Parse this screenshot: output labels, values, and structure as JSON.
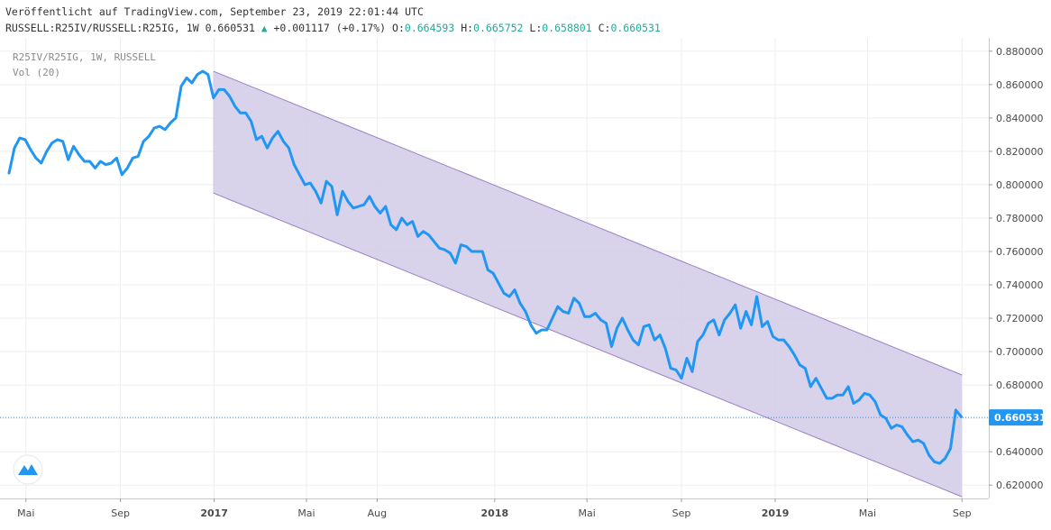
{
  "header": {
    "published": "Veröffentlicht auf TradingView.com, September 23, 2019 22:01:44 UTC",
    "symbol_info": "RUSSELL:R25IV/RUSSELL:R25IG, 1W",
    "last": "0.660531",
    "change": "+0.001117 (+0.17%)",
    "o_label": "O:",
    "o_value": "0.664593",
    "h_label": "H:",
    "h_value": "0.665752",
    "l_label": "L:",
    "l_value": "0.658801",
    "c_label": "C:",
    "c_value": "0.660531"
  },
  "legend": {
    "series": "R25IV/R25IG, 1W, RUSSELL",
    "volume": "Vol (20)"
  },
  "colors": {
    "line": "#2196f3",
    "channel_fill": "#d1cbe6",
    "channel_border": "#9c7fc4",
    "grid": "#eeeeee",
    "price_tag": "#2196f3"
  },
  "icons": {
    "logo": "tradingview-logo-icon"
  },
  "chart_data": {
    "type": "line",
    "timeframe": "1W",
    "x_ticks": [
      "Mai",
      "Sep",
      "2017",
      "Mai",
      "Aug",
      "2018",
      "Mai",
      "Sep",
      "2019",
      "Mai",
      "Sep"
    ],
    "y_ticks": [
      "0.620000",
      "0.640000",
      "0.660000",
      "0.680000",
      "0.700000",
      "0.720000",
      "0.740000",
      "0.760000",
      "0.780000",
      "0.800000",
      "0.820000",
      "0.840000",
      "0.860000",
      "0.880000"
    ],
    "ylim": [
      0.612,
      0.888
    ],
    "last_value": 0.660531,
    "last_value_label": "0.660531",
    "x_start": "2016-04-09",
    "x_end": "2019-09-23",
    "series": [
      {
        "points": [
          [
            "2016-04-09",
            0.807
          ],
          [
            "2016-04-16",
            0.822
          ],
          [
            "2016-04-23",
            0.828
          ],
          [
            "2016-04-30",
            0.827
          ],
          [
            "2016-05-07",
            0.821
          ],
          [
            "2016-05-14",
            0.816
          ],
          [
            "2016-05-21",
            0.813
          ],
          [
            "2016-05-28",
            0.82
          ],
          [
            "2016-06-04",
            0.825
          ],
          [
            "2016-06-11",
            0.827
          ],
          [
            "2016-06-18",
            0.826
          ],
          [
            "2016-06-25",
            0.815
          ],
          [
            "2016-07-02",
            0.823
          ],
          [
            "2016-07-09",
            0.818
          ],
          [
            "2016-07-16",
            0.814
          ],
          [
            "2016-07-23",
            0.814
          ],
          [
            "2016-07-30",
            0.81
          ],
          [
            "2016-08-06",
            0.814
          ],
          [
            "2016-08-13",
            0.812
          ],
          [
            "2016-08-20",
            0.813
          ],
          [
            "2016-08-27",
            0.816
          ],
          [
            "2016-09-03",
            0.806
          ],
          [
            "2016-09-10",
            0.81
          ],
          [
            "2016-09-17",
            0.816
          ],
          [
            "2016-09-24",
            0.817
          ],
          [
            "2016-10-01",
            0.826
          ],
          [
            "2016-10-08",
            0.829
          ],
          [
            "2016-10-15",
            0.834
          ],
          [
            "2016-10-22",
            0.835
          ],
          [
            "2016-10-29",
            0.833
          ],
          [
            "2016-11-05",
            0.837
          ],
          [
            "2016-11-12",
            0.84
          ],
          [
            "2016-11-19",
            0.859
          ],
          [
            "2016-11-26",
            0.864
          ],
          [
            "2016-12-03",
            0.861
          ],
          [
            "2016-12-10",
            0.866
          ],
          [
            "2016-12-17",
            0.868
          ],
          [
            "2016-12-24",
            0.866
          ],
          [
            "2016-12-31",
            0.852
          ],
          [
            "2017-01-07",
            0.857
          ],
          [
            "2017-01-14",
            0.857
          ],
          [
            "2017-01-21",
            0.853
          ],
          [
            "2017-01-28",
            0.847
          ],
          [
            "2017-02-04",
            0.843
          ],
          [
            "2017-02-11",
            0.843
          ],
          [
            "2017-02-18",
            0.838
          ],
          [
            "2017-02-25",
            0.827
          ],
          [
            "2017-03-04",
            0.829
          ],
          [
            "2017-03-11",
            0.822
          ],
          [
            "2017-03-18",
            0.828
          ],
          [
            "2017-03-25",
            0.832
          ],
          [
            "2017-04-01",
            0.826
          ],
          [
            "2017-04-08",
            0.822
          ],
          [
            "2017-04-15",
            0.812
          ],
          [
            "2017-04-22",
            0.806
          ],
          [
            "2017-04-29",
            0.8
          ],
          [
            "2017-05-06",
            0.801
          ],
          [
            "2017-05-13",
            0.796
          ],
          [
            "2017-05-20",
            0.789
          ],
          [
            "2017-05-27",
            0.802
          ],
          [
            "2017-06-03",
            0.799
          ],
          [
            "2017-06-10",
            0.782
          ],
          [
            "2017-06-17",
            0.796
          ],
          [
            "2017-06-24",
            0.79
          ],
          [
            "2017-07-01",
            0.786
          ],
          [
            "2017-07-08",
            0.787
          ],
          [
            "2017-07-15",
            0.788
          ],
          [
            "2017-07-22",
            0.793
          ],
          [
            "2017-07-29",
            0.787
          ],
          [
            "2017-08-05",
            0.783
          ],
          [
            "2017-08-12",
            0.787
          ],
          [
            "2017-08-19",
            0.776
          ],
          [
            "2017-08-26",
            0.773
          ],
          [
            "2017-09-02",
            0.78
          ],
          [
            "2017-09-09",
            0.776
          ],
          [
            "2017-09-16",
            0.778
          ],
          [
            "2017-09-23",
            0.769
          ],
          [
            "2017-09-30",
            0.772
          ],
          [
            "2017-10-07",
            0.77
          ],
          [
            "2017-10-14",
            0.766
          ],
          [
            "2017-10-21",
            0.762
          ],
          [
            "2017-10-28",
            0.761
          ],
          [
            "2017-11-04",
            0.759
          ],
          [
            "2017-11-11",
            0.753
          ],
          [
            "2017-11-18",
            0.764
          ],
          [
            "2017-11-25",
            0.763
          ],
          [
            "2017-12-02",
            0.76
          ],
          [
            "2017-12-09",
            0.76
          ],
          [
            "2017-12-16",
            0.76
          ],
          [
            "2017-12-23",
            0.749
          ],
          [
            "2017-12-30",
            0.747
          ],
          [
            "2018-01-06",
            0.741
          ],
          [
            "2018-01-13",
            0.735
          ],
          [
            "2018-01-20",
            0.733
          ],
          [
            "2018-01-27",
            0.737
          ],
          [
            "2018-02-03",
            0.729
          ],
          [
            "2018-02-10",
            0.724
          ],
          [
            "2018-02-17",
            0.716
          ],
          [
            "2018-02-24",
            0.711
          ],
          [
            "2018-03-03",
            0.713
          ],
          [
            "2018-03-10",
            0.713
          ],
          [
            "2018-03-17",
            0.72
          ],
          [
            "2018-03-24",
            0.727
          ],
          [
            "2018-03-31",
            0.724
          ],
          [
            "2018-04-07",
            0.723
          ],
          [
            "2018-04-14",
            0.732
          ],
          [
            "2018-04-21",
            0.729
          ],
          [
            "2018-04-28",
            0.721
          ],
          [
            "2018-05-05",
            0.721
          ],
          [
            "2018-05-12",
            0.723
          ],
          [
            "2018-05-19",
            0.719
          ],
          [
            "2018-05-26",
            0.717
          ],
          [
            "2018-06-02",
            0.703
          ],
          [
            "2018-06-09",
            0.714
          ],
          [
            "2018-06-16",
            0.72
          ],
          [
            "2018-06-23",
            0.713
          ],
          [
            "2018-06-30",
            0.707
          ],
          [
            "2018-07-07",
            0.704
          ],
          [
            "2018-07-14",
            0.715
          ],
          [
            "2018-07-21",
            0.716
          ],
          [
            "2018-07-28",
            0.707
          ],
          [
            "2018-08-04",
            0.71
          ],
          [
            "2018-08-11",
            0.702
          ],
          [
            "2018-08-18",
            0.69
          ],
          [
            "2018-08-25",
            0.689
          ],
          [
            "2018-09-01",
            0.684
          ],
          [
            "2018-09-08",
            0.696
          ],
          [
            "2018-09-15",
            0.688
          ],
          [
            "2018-09-22",
            0.706
          ],
          [
            "2018-09-29",
            0.71
          ],
          [
            "2018-10-06",
            0.717
          ],
          [
            "2018-10-13",
            0.719
          ],
          [
            "2018-10-20",
            0.71
          ],
          [
            "2018-10-27",
            0.719
          ],
          [
            "2018-11-03",
            0.723
          ],
          [
            "2018-11-10",
            0.728
          ],
          [
            "2018-11-17",
            0.714
          ],
          [
            "2018-11-24",
            0.724
          ],
          [
            "2018-12-01",
            0.716
          ],
          [
            "2018-12-08",
            0.733
          ],
          [
            "2018-12-15",
            0.715
          ],
          [
            "2018-12-22",
            0.718
          ],
          [
            "2018-12-29",
            0.709
          ],
          [
            "2019-01-05",
            0.707
          ],
          [
            "2019-01-12",
            0.707
          ],
          [
            "2019-01-19",
            0.703
          ],
          [
            "2019-01-26",
            0.698
          ],
          [
            "2019-02-02",
            0.692
          ],
          [
            "2019-02-09",
            0.69
          ],
          [
            "2019-02-16",
            0.679
          ],
          [
            "2019-02-23",
            0.684
          ],
          [
            "2019-03-02",
            0.678
          ],
          [
            "2019-03-09",
            0.672
          ],
          [
            "2019-03-16",
            0.672
          ],
          [
            "2019-03-23",
            0.674
          ],
          [
            "2019-03-30",
            0.674
          ],
          [
            "2019-04-06",
            0.679
          ],
          [
            "2019-04-13",
            0.669
          ],
          [
            "2019-04-20",
            0.671
          ],
          [
            "2019-04-27",
            0.675
          ],
          [
            "2019-05-04",
            0.674
          ],
          [
            "2019-05-11",
            0.67
          ],
          [
            "2019-05-18",
            0.662
          ],
          [
            "2019-05-25",
            0.66
          ],
          [
            "2019-06-01",
            0.654
          ],
          [
            "2019-06-08",
            0.656
          ],
          [
            "2019-06-15",
            0.655
          ],
          [
            "2019-06-22",
            0.65
          ],
          [
            "2019-06-29",
            0.646
          ],
          [
            "2019-07-06",
            0.647
          ],
          [
            "2019-07-13",
            0.645
          ],
          [
            "2019-07-20",
            0.638
          ],
          [
            "2019-07-27",
            0.634
          ],
          [
            "2019-08-03",
            0.633
          ],
          [
            "2019-08-10",
            0.636
          ],
          [
            "2019-08-17",
            0.642
          ],
          [
            "2019-08-24",
            0.665
          ],
          [
            "2019-08-31",
            0.661
          ]
        ]
      }
    ],
    "channel": {
      "upper": [
        [
          "2016-12-31",
          0.868
        ],
        [
          "2019-09-01",
          0.686
        ]
      ],
      "lower": [
        [
          "2016-12-31",
          0.795
        ],
        [
          "2019-09-01",
          0.613
        ]
      ]
    }
  }
}
